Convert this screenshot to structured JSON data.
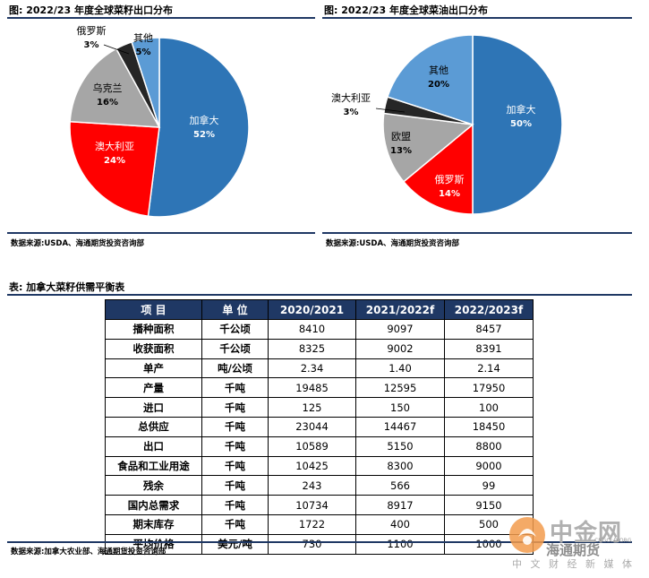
{
  "left_figure": {
    "title": "图:  2022/23 年度全球菜籽出口分布",
    "source": "数据来源:USDA、海通期货投资咨询部"
  },
  "right_figure": {
    "title": "图:  2022/23 年度全球菜油出口分布",
    "source": "数据来源:USDA、海通期货投资咨询部"
  },
  "chart_data": [
    {
      "type": "pie",
      "title": "2022/23 年度全球菜籽出口分布",
      "slices": [
        {
          "label": "加拿大",
          "value": 52,
          "pct_label": "52%",
          "color": "#2e75b6"
        },
        {
          "label": "澳大利亚",
          "value": 24,
          "pct_label": "24%",
          "color": "#ff0000"
        },
        {
          "label": "乌克兰",
          "value": 16,
          "pct_label": "16%",
          "color": "#a6a6a6"
        },
        {
          "label": "俄罗斯",
          "value": 3,
          "pct_label": "3%",
          "color": "#262626"
        },
        {
          "label": "其他",
          "value": 5,
          "pct_label": "5%",
          "color": "#5b9bd5"
        }
      ]
    },
    {
      "type": "pie",
      "title": "2022/23 年度全球菜油出口分布",
      "slices": [
        {
          "label": "加拿大",
          "value": 50,
          "pct_label": "50%",
          "color": "#2e75b6"
        },
        {
          "label": "俄罗斯",
          "value": 14,
          "pct_label": "14%",
          "color": "#ff0000"
        },
        {
          "label": "欧盟",
          "value": 13,
          "pct_label": "13%",
          "color": "#a6a6a6"
        },
        {
          "label": "澳大利亚",
          "value": 3,
          "pct_label": "3%",
          "color": "#262626"
        },
        {
          "label": "其他",
          "value": 20,
          "pct_label": "20%",
          "color": "#5b9bd5"
        }
      ]
    }
  ],
  "table": {
    "title": "表:  加拿大菜籽供需平衡表",
    "headers": [
      "项 目",
      "单 位",
      "2020/2021",
      "2021/2022f",
      "2022/2023f"
    ],
    "rows": [
      [
        "播种面积",
        "千公顷",
        "8410",
        "9097",
        "8457"
      ],
      [
        "收获面积",
        "千公顷",
        "8325",
        "9002",
        "8391"
      ],
      [
        "单产",
        "吨/公顷",
        "2.34",
        "1.40",
        "2.14"
      ],
      [
        "产量",
        "千吨",
        "19485",
        "12595",
        "17950"
      ],
      [
        "进口",
        "千吨",
        "125",
        "150",
        "100"
      ],
      [
        "总供应",
        "千吨",
        "23044",
        "14467",
        "18450"
      ],
      [
        "出口",
        "千吨",
        "10589",
        "5150",
        "8800"
      ],
      [
        "食品和工业用途",
        "千吨",
        "10425",
        "8300",
        "9000"
      ],
      [
        "残余",
        "千吨",
        "243",
        "566",
        "99"
      ],
      [
        "国内总需求",
        "千吨",
        "10734",
        "8917",
        "9150"
      ],
      [
        "期末库存",
        "千吨",
        "1722",
        "400",
        "500"
      ],
      [
        "平均价格",
        "美元/吨",
        "730",
        "1100",
        "1000"
      ]
    ],
    "source": "数据来源:加拿大农业部、海通期货投资咨询部"
  },
  "watermark": {
    "name": "中金网",
    "sub": "中 文 财 经 新 媒 体",
    "brand": "海通期货",
    "url": "CNGOLD.ORG"
  }
}
